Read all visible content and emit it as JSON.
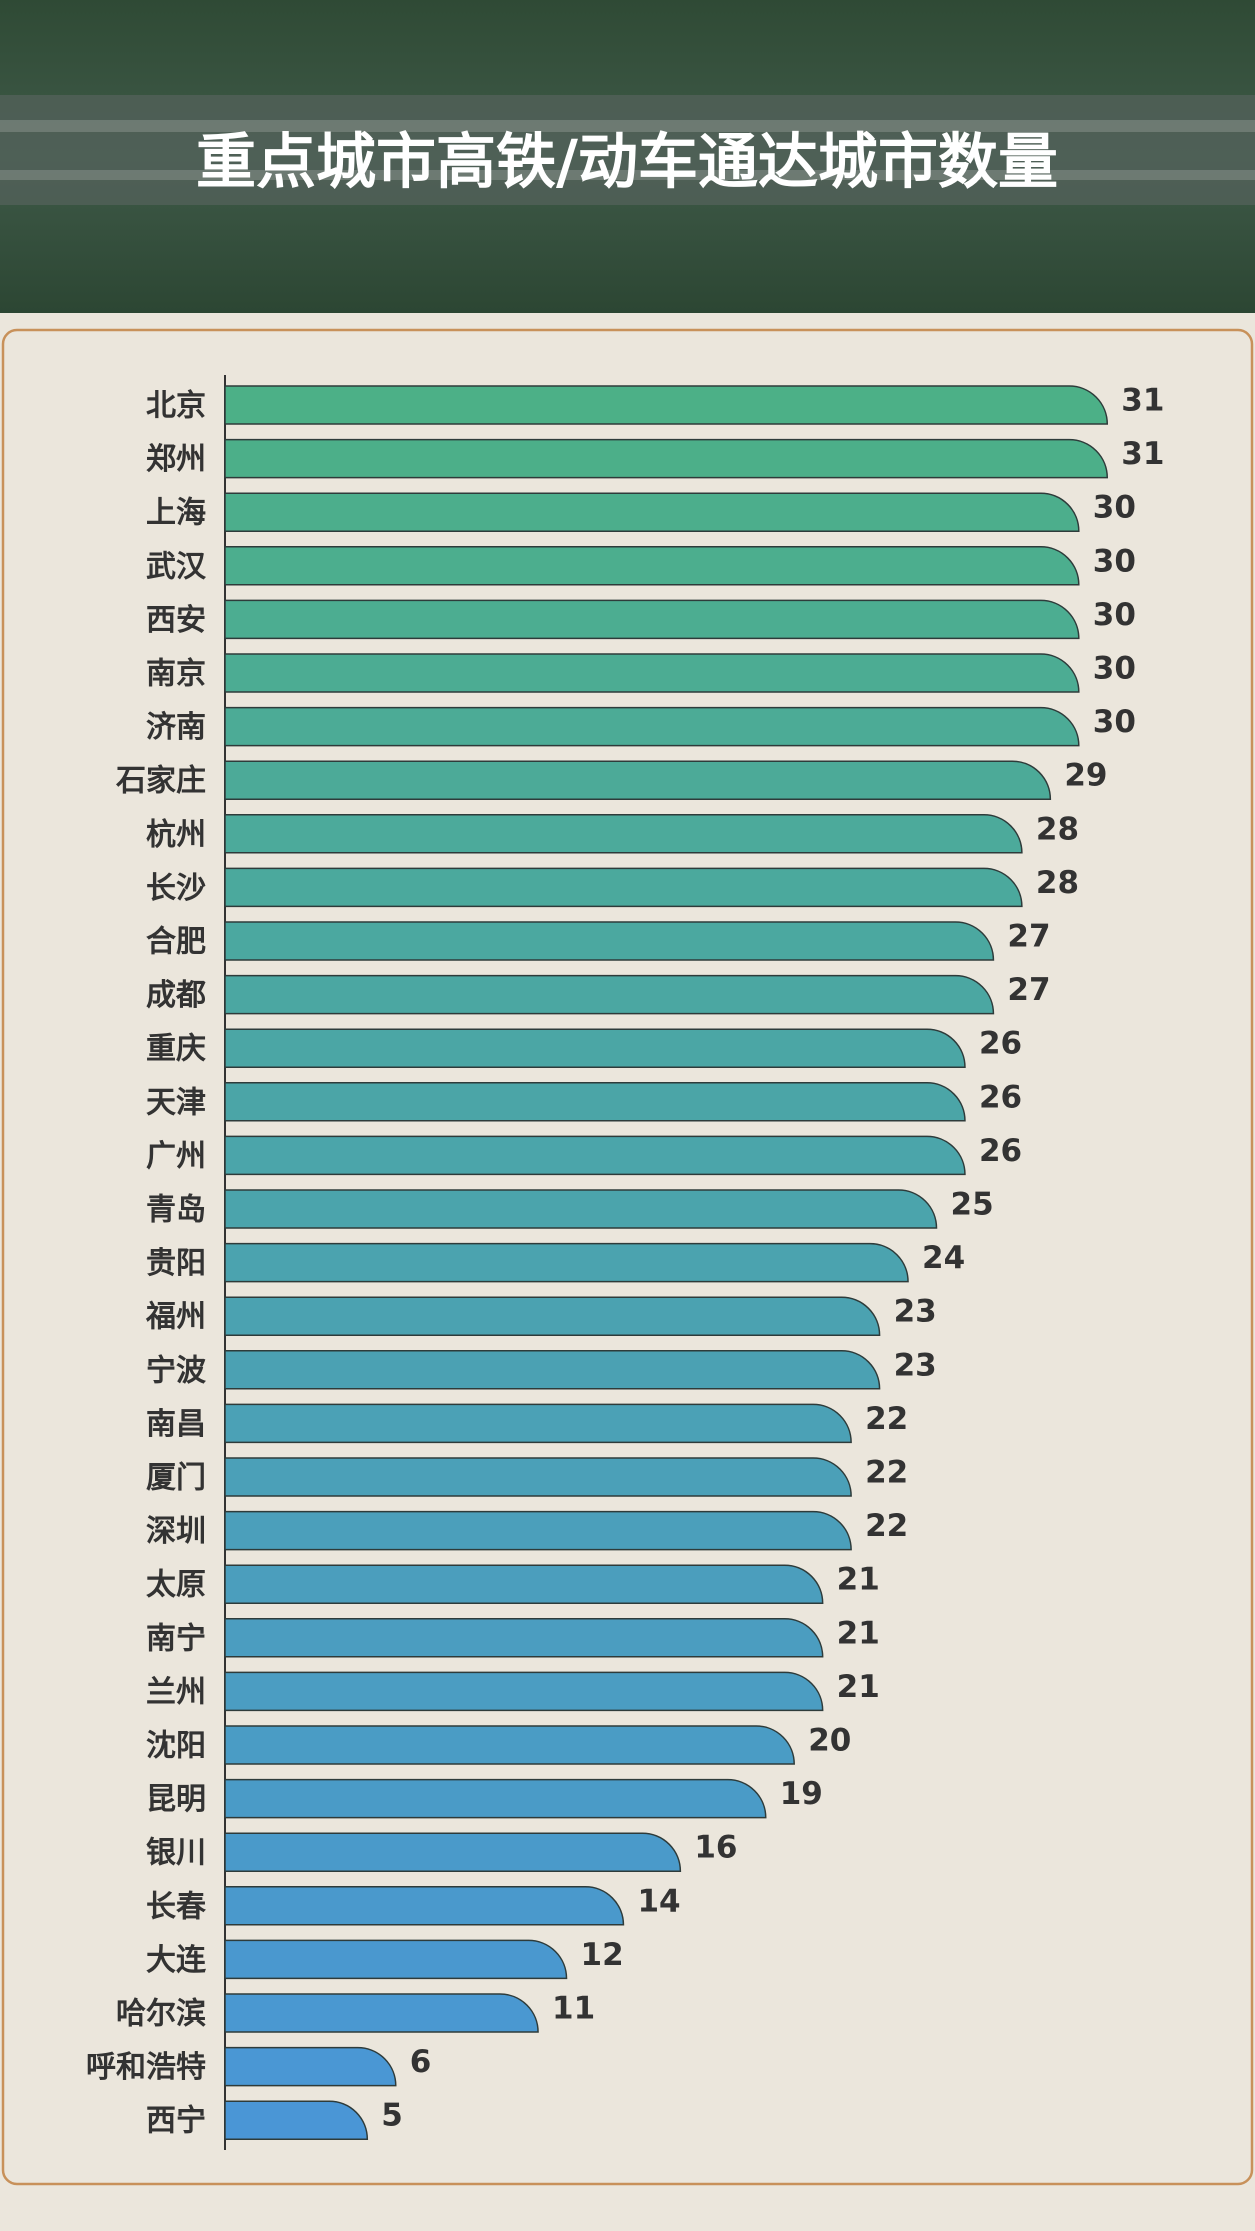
{
  "chart_data": {
    "type": "bar",
    "orientation": "horizontal",
    "title": "重点城市高铁/动车通达城市数量",
    "categories": [
      "北京",
      "郑州",
      "上海",
      "武汉",
      "西安",
      "南京",
      "济南",
      "石家庄",
      "杭州",
      "长沙",
      "合肥",
      "成都",
      "重庆",
      "天津",
      "广州",
      "青岛",
      "贵阳",
      "福州",
      "宁波",
      "南昌",
      "厦门",
      "深圳",
      "太原",
      "南宁",
      "兰州",
      "沈阳",
      "昆明",
      "银川",
      "长春",
      "大连",
      "哈尔滨",
      "呼和浩特",
      "西宁"
    ],
    "values": [
      31,
      31,
      30,
      30,
      30,
      30,
      30,
      29,
      28,
      28,
      27,
      27,
      26,
      26,
      26,
      25,
      24,
      23,
      23,
      22,
      22,
      22,
      21,
      21,
      21,
      20,
      19,
      16,
      14,
      12,
      11,
      6,
      5
    ],
    "colors": [
      "#4cb087",
      "#4a96d6"
    ]
  }
}
